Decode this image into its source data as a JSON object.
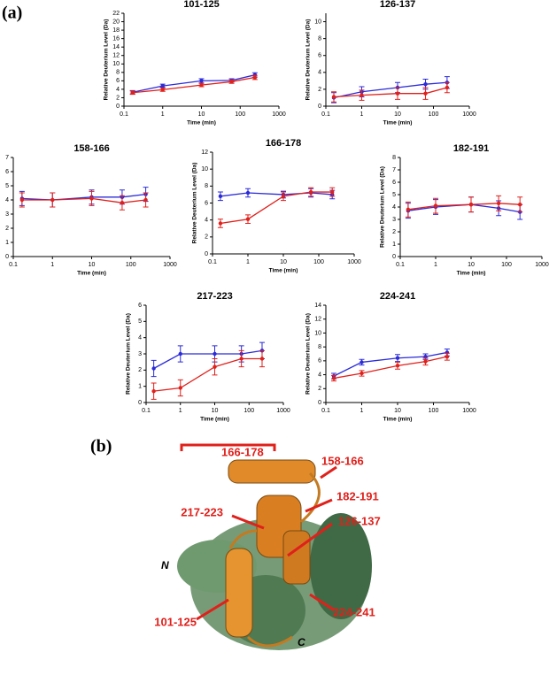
{
  "panel_labels": [
    "(a)",
    "(b)"
  ],
  "chart_data": [
    {
      "type": "line",
      "title": "101-125",
      "xlabel": "Time (min)",
      "ylabel": "Relative Deuterium Level (Da)",
      "xscale": "log",
      "x": [
        0.167,
        1,
        10,
        60,
        240
      ],
      "xlim": [
        0.1,
        1000
      ],
      "xticks": [
        0.1,
        1,
        10,
        100,
        1000
      ],
      "ylim": [
        0,
        22
      ],
      "yticks": [
        0,
        2,
        4,
        6,
        8,
        10,
        12,
        14,
        16,
        18,
        20,
        22
      ],
      "series": [
        {
          "color": "#2b2bd9",
          "values": [
            3.3,
            4.8,
            6.0,
            6.1,
            7.4
          ],
          "errors": [
            0.4,
            0.4,
            0.5,
            0.4,
            0.5
          ]
        },
        {
          "color": "#e0201b",
          "values": [
            3.2,
            3.9,
            5.0,
            5.8,
            6.8
          ],
          "errors": [
            0.4,
            0.4,
            0.4,
            0.4,
            0.5
          ]
        }
      ]
    },
    {
      "type": "line",
      "title": "126-137",
      "xlabel": "Time (min)",
      "ylabel": "Relative Deuterium Level (Da)",
      "xscale": "log",
      "x": [
        0.167,
        1,
        10,
        60,
        240
      ],
      "xlim": [
        0.1,
        1000
      ],
      "xticks": [
        0.1,
        1,
        10,
        100,
        1000
      ],
      "ylim": [
        0,
        11
      ],
      "yticks": [
        0,
        2,
        4,
        6,
        8,
        10
      ],
      "series": [
        {
          "color": "#2b2bd9",
          "values": [
            1.0,
            1.7,
            2.2,
            2.6,
            2.8
          ],
          "errors": [
            0.6,
            0.6,
            0.6,
            0.6,
            0.7
          ]
        },
        {
          "color": "#e0201b",
          "values": [
            1.1,
            1.3,
            1.5,
            1.5,
            2.2
          ],
          "errors": [
            0.6,
            0.6,
            0.7,
            0.7,
            0.6
          ]
        }
      ]
    },
    {
      "type": "line",
      "title": "158-166",
      "xlabel": "Time (min)",
      "ylabel": "Relative Deuterium Level (Da)",
      "xscale": "log",
      "x": [
        0.167,
        1,
        10,
        60,
        240
      ],
      "xlim": [
        0.1,
        1000
      ],
      "xticks": [
        0.1,
        1,
        10,
        100,
        1000
      ],
      "ylim": [
        0,
        7
      ],
      "yticks": [
        0,
        1,
        2,
        3,
        4,
        5,
        6,
        7
      ],
      "series": [
        {
          "color": "#2b2bd9",
          "values": [
            4.1,
            4.0,
            4.2,
            4.2,
            4.4
          ],
          "errors": [
            0.5,
            0.5,
            0.5,
            0.5,
            0.5
          ]
        },
        {
          "color": "#e0201b",
          "values": [
            4.0,
            4.0,
            4.1,
            3.8,
            4.0
          ],
          "errors": [
            0.5,
            0.5,
            0.5,
            0.5,
            0.5
          ]
        }
      ]
    },
    {
      "type": "line",
      "title": "166-178",
      "xlabel": "Time (min)",
      "ylabel": "Relative Deuterium Level (Da)",
      "xscale": "log",
      "x": [
        0.167,
        1,
        10,
        60,
        240
      ],
      "xlim": [
        0.1,
        1000
      ],
      "xticks": [
        0.1,
        1,
        10,
        100,
        1000
      ],
      "ylim": [
        0,
        12
      ],
      "yticks": [
        0,
        2,
        4,
        6,
        8,
        10,
        12
      ],
      "series": [
        {
          "color": "#2b2bd9",
          "values": [
            6.8,
            7.2,
            7.0,
            7.2,
            7.0
          ],
          "errors": [
            0.5,
            0.5,
            0.4,
            0.5,
            0.5
          ]
        },
        {
          "color": "#e0201b",
          "values": [
            3.6,
            4.1,
            6.8,
            7.3,
            7.3
          ],
          "errors": [
            0.5,
            0.5,
            0.5,
            0.5,
            0.5
          ]
        }
      ]
    },
    {
      "type": "line",
      "title": "182-191",
      "xlabel": "Time (min)",
      "ylabel": "Relative Deuterium Level (Da)",
      "xscale": "log",
      "x": [
        0.167,
        1,
        10,
        60,
        240
      ],
      "xlim": [
        0.1,
        1000
      ],
      "xticks": [
        0.1,
        1,
        10,
        100,
        1000
      ],
      "ylim": [
        0,
        8
      ],
      "yticks": [
        0,
        1,
        2,
        3,
        4,
        5,
        6,
        7,
        8
      ],
      "series": [
        {
          "color": "#2b2bd9",
          "values": [
            3.7,
            4.0,
            4.2,
            3.9,
            3.6
          ],
          "errors": [
            0.6,
            0.6,
            0.6,
            0.6,
            0.6
          ]
        },
        {
          "color": "#e0201b",
          "values": [
            3.8,
            4.1,
            4.2,
            4.3,
            4.2
          ],
          "errors": [
            0.6,
            0.6,
            0.6,
            0.6,
            0.6
          ]
        }
      ]
    },
    {
      "type": "line",
      "title": "217-223",
      "xlabel": "Time (min)",
      "ylabel": "Relative Deuterium Level (Da)",
      "xscale": "log",
      "x": [
        0.167,
        1,
        10,
        60,
        240
      ],
      "xlim": [
        0.1,
        1000
      ],
      "xticks": [
        0.1,
        1,
        10,
        100,
        1000
      ],
      "ylim": [
        0,
        6
      ],
      "yticks": [
        0,
        1,
        2,
        3,
        4,
        5,
        6
      ],
      "series": [
        {
          "color": "#2b2bd9",
          "values": [
            2.1,
            3.0,
            3.0,
            3.0,
            3.2
          ],
          "errors": [
            0.5,
            0.5,
            0.5,
            0.5,
            0.5
          ]
        },
        {
          "color": "#e0201b",
          "values": [
            0.7,
            0.9,
            2.2,
            2.7,
            2.7
          ],
          "errors": [
            0.5,
            0.5,
            0.5,
            0.5,
            0.5
          ]
        }
      ]
    },
    {
      "type": "line",
      "title": "224-241",
      "xlabel": "Time (min)",
      "ylabel": "Relative Deuterium Level (Da)",
      "xscale": "log",
      "x": [
        0.167,
        1,
        10,
        60,
        240
      ],
      "xlim": [
        0.1,
        1000
      ],
      "xticks": [
        0.1,
        1,
        10,
        100,
        1000
      ],
      "ylim": [
        0,
        14
      ],
      "yticks": [
        0,
        2,
        4,
        6,
        8,
        10,
        12,
        14
      ],
      "series": [
        {
          "color": "#2b2bd9",
          "values": [
            3.8,
            5.8,
            6.4,
            6.6,
            7.2
          ],
          "errors": [
            0.4,
            0.4,
            0.5,
            0.4,
            0.5
          ]
        },
        {
          "color": "#e0201b",
          "values": [
            3.5,
            4.2,
            5.3,
            5.9,
            6.6
          ],
          "errors": [
            0.4,
            0.4,
            0.5,
            0.5,
            0.5
          ]
        }
      ]
    }
  ],
  "structure": {
    "labels": [
      "166-178",
      "158-166",
      "182-191",
      "217-223",
      "126-137",
      "101-125",
      "224-241"
    ],
    "termini": [
      "N",
      "C"
    ]
  }
}
